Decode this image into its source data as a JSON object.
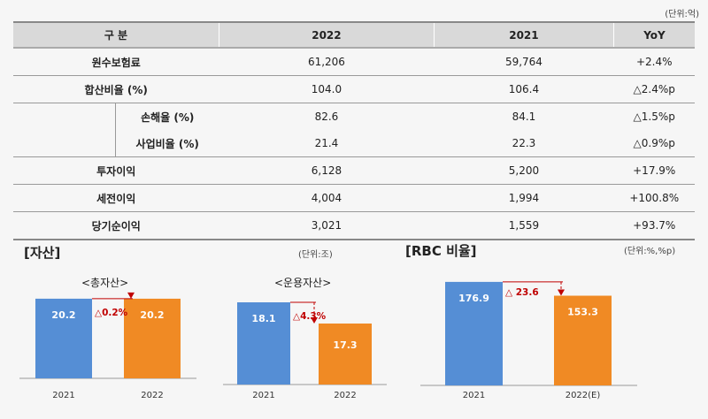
{
  "table": {
    "unit": "(단위:억)",
    "headers": [
      "구  분",
      "2022",
      "2021",
      "YoY"
    ],
    "rows": [
      {
        "label": "원수보험료",
        "v2022": "61,206",
        "v2021": "59,764",
        "yoy": "+2.4%"
      },
      {
        "label": "합산비율 (%)",
        "v2022": "104.0",
        "v2021": "106.4",
        "yoy": "△2.4%p"
      },
      {
        "label": "손해율 (%)",
        "v2022": "82.6",
        "v2021": "84.1",
        "yoy": "△1.5%p"
      },
      {
        "label": "사업비율 (%)",
        "v2022": "21.4",
        "v2021": "22.3",
        "yoy": "△0.9%p"
      },
      {
        "label": "투자이익",
        "v2022": "6,128",
        "v2021": "5,200",
        "yoy": "+17.9%"
      },
      {
        "label": "세전이익",
        "v2022": "4,004",
        "v2021": "1,994",
        "yoy": "+100.8%"
      },
      {
        "label": "당기순이익",
        "v2022": "3,021",
        "v2021": "1,559",
        "yoy": "+93.7%"
      }
    ]
  },
  "assets": {
    "title": "[자산]",
    "unit": "(단위:조)"
  },
  "rbc": {
    "title": "[RBC 비율]",
    "unit": "(단위:%,%p)"
  },
  "colors": {
    "blue": "#558ed5",
    "orange": "#f08a24",
    "arrow": "#c00000"
  },
  "chart_data": [
    {
      "type": "bar",
      "title": "<총자산>",
      "categories": [
        "2021",
        "2022"
      ],
      "values": [
        20.2,
        20.2
      ],
      "labels": [
        "20.2",
        "20.2"
      ],
      "annotation": "△0.2%"
    },
    {
      "type": "bar",
      "title": "<운용자산>",
      "categories": [
        "2021",
        "2022"
      ],
      "values": [
        18.1,
        17.3
      ],
      "labels": [
        "18.1",
        "17.3"
      ],
      "annotation": "△4.3%"
    },
    {
      "type": "bar",
      "title": "",
      "categories": [
        "2021",
        "2022(E)"
      ],
      "values": [
        176.9,
        153.3
      ],
      "labels": [
        "176.9",
        "153.3"
      ],
      "annotation": "△ 23.6"
    }
  ]
}
